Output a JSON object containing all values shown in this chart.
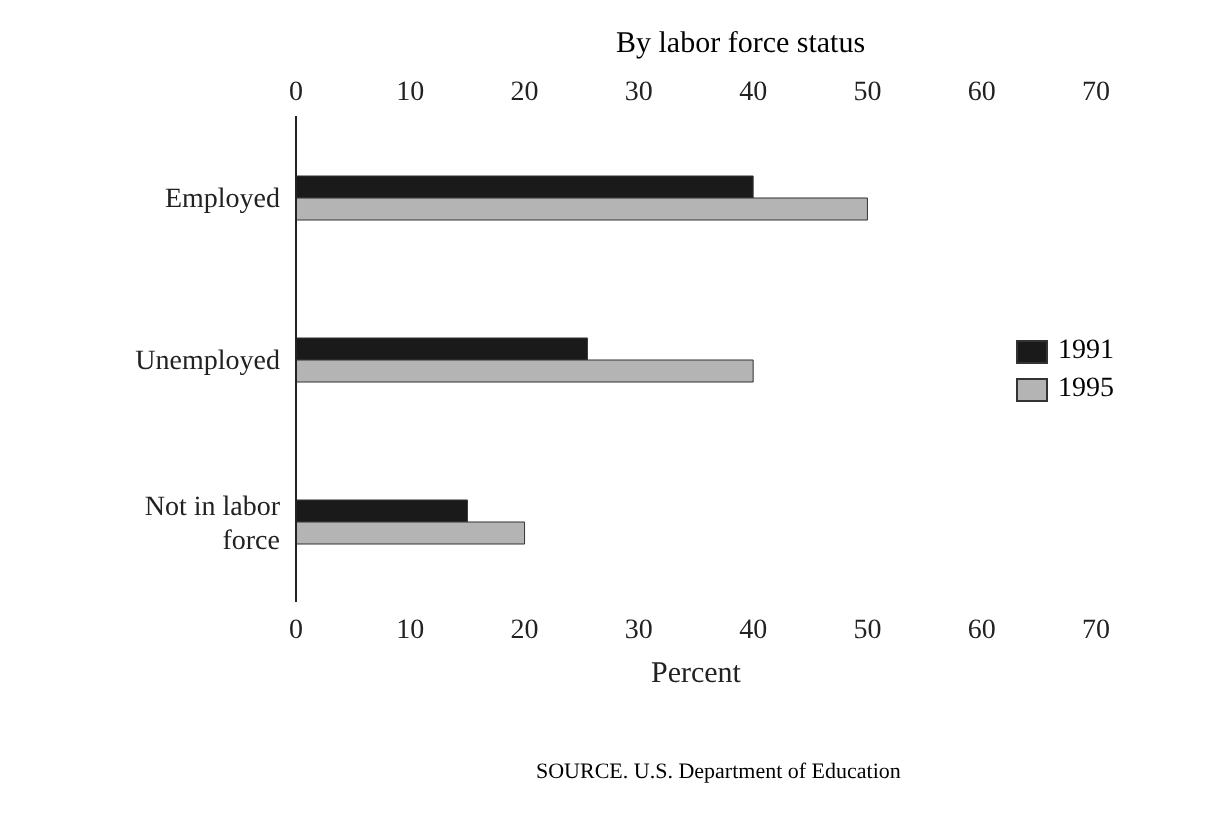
{
  "chart_data": {
    "type": "bar",
    "orientation": "horizontal",
    "title": "By labor force status",
    "xlabel": "Percent",
    "categories": [
      "Employed",
      "Unemployed",
      "Not in labor\nforce"
    ],
    "series": [
      {
        "name": "1991",
        "color": "#1a1a1a",
        "values": [
          40,
          25.5,
          15
        ]
      },
      {
        "name": "1995",
        "color": "#b4b4b4",
        "values": [
          50,
          40,
          20
        ]
      }
    ],
    "xlim": [
      0,
      70
    ],
    "xticks": [
      0,
      10,
      20,
      30,
      40,
      50,
      60,
      70
    ],
    "x2lim": [
      0,
      70
    ],
    "x2ticks": [
      0,
      10,
      20,
      30,
      40,
      50,
      60,
      70
    ],
    "legend": "right",
    "annotations": [
      "SOURCE. U.S. Department of Education"
    ]
  }
}
